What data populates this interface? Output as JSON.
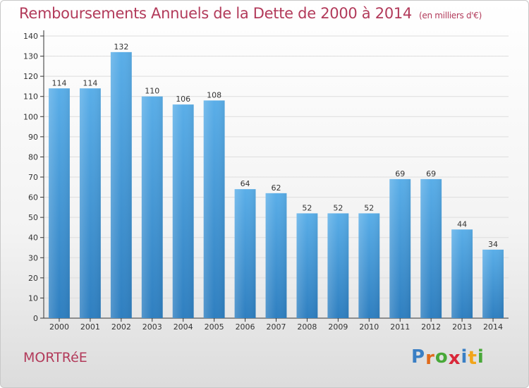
{
  "title": "Remboursements Annuels de la Dette de 2000 à 2014",
  "unit": "(en milliers d'€)",
  "city": "MORTRéE",
  "logo": {
    "text": "Proxiti",
    "colors": [
      "#3a7fc4",
      "#e06b1c",
      "#48a838",
      "#d9283a",
      "#3a7fc4",
      "#f2a51a",
      "#48a838"
    ]
  },
  "colors": {
    "title": "#b23a5a",
    "bar_top": "#5aaee8",
    "bar_bottom": "#2f7fc0",
    "axis": "#333333",
    "grid": "#dddddd"
  },
  "chart_data": {
    "type": "bar",
    "title": "Remboursements Annuels de la Dette de 2000 à 2014",
    "xlabel": "",
    "ylabel": "",
    "ylim": [
      0,
      140
    ],
    "yticks": [
      0,
      10,
      20,
      30,
      40,
      50,
      60,
      70,
      80,
      90,
      100,
      110,
      120,
      130,
      140
    ],
    "categories": [
      "2000",
      "2001",
      "2002",
      "2003",
      "2004",
      "2005",
      "2006",
      "2007",
      "2008",
      "2009",
      "2010",
      "2011",
      "2012",
      "2013",
      "2014"
    ],
    "values": [
      114,
      114,
      132,
      110,
      106,
      108,
      64,
      62,
      52,
      52,
      52,
      69,
      69,
      44,
      34
    ]
  }
}
